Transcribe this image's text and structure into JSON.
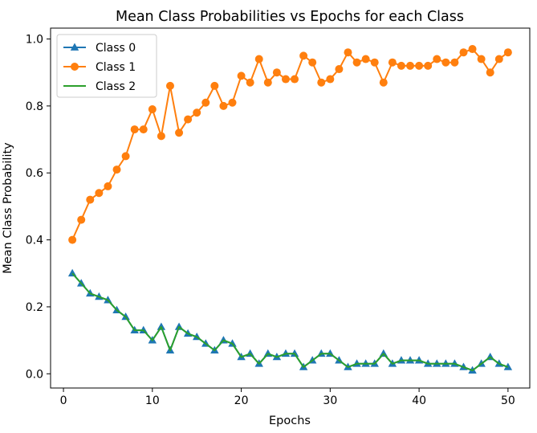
{
  "chart_data": {
    "type": "line",
    "title": "Mean Class Probabilities vs Epochs for each Class",
    "xlabel": "Epochs",
    "ylabel": "Mean Class Probability",
    "xlim": [
      -1.45,
      52.45
    ],
    "ylim": [
      -0.0425,
      1.0325
    ],
    "xticks": [
      0,
      10,
      20,
      30,
      40,
      50
    ],
    "xtick_labels": [
      "0",
      "10",
      "20",
      "30",
      "40",
      "50"
    ],
    "yticks": [
      0.0,
      0.2,
      0.4,
      0.6,
      0.8,
      1.0
    ],
    "ytick_labels": [
      "0.0",
      "0.2",
      "0.4",
      "0.6",
      "0.8",
      "1.0"
    ],
    "grid": false,
    "legend_position": "upper-left",
    "x": [
      1,
      2,
      3,
      4,
      5,
      6,
      7,
      8,
      9,
      10,
      11,
      12,
      13,
      14,
      15,
      16,
      17,
      18,
      19,
      20,
      21,
      22,
      23,
      24,
      25,
      26,
      27,
      28,
      29,
      30,
      31,
      32,
      33,
      34,
      35,
      36,
      37,
      38,
      39,
      40,
      41,
      42,
      43,
      44,
      45,
      46,
      47,
      48,
      49,
      50
    ],
    "series": [
      {
        "name": "Class 0",
        "color": "#1f77b4",
        "marker": "triangle",
        "values": [
          0.3,
          0.27,
          0.24,
          0.23,
          0.22,
          0.19,
          0.17,
          0.13,
          0.13,
          0.1,
          0.14,
          0.07,
          0.14,
          0.12,
          0.11,
          0.09,
          0.07,
          0.1,
          0.09,
          0.05,
          0.06,
          0.03,
          0.06,
          0.05,
          0.06,
          0.06,
          0.02,
          0.04,
          0.06,
          0.06,
          0.04,
          0.02,
          0.03,
          0.03,
          0.03,
          0.06,
          0.03,
          0.04,
          0.04,
          0.04,
          0.03,
          0.03,
          0.03,
          0.03,
          0.02,
          0.01,
          0.03,
          0.05,
          0.03,
          0.02
        ]
      },
      {
        "name": "Class 1",
        "color": "#ff7f0e",
        "marker": "circle",
        "values": [
          0.4,
          0.46,
          0.52,
          0.54,
          0.56,
          0.61,
          0.65,
          0.73,
          0.73,
          0.79,
          0.71,
          0.86,
          0.72,
          0.76,
          0.78,
          0.81,
          0.86,
          0.8,
          0.81,
          0.89,
          0.87,
          0.94,
          0.87,
          0.9,
          0.88,
          0.88,
          0.95,
          0.93,
          0.87,
          0.88,
          0.91,
          0.96,
          0.93,
          0.94,
          0.93,
          0.87,
          0.93,
          0.92,
          0.92,
          0.92,
          0.92,
          0.94,
          0.93,
          0.93,
          0.96,
          0.97,
          0.94,
          0.9,
          0.94,
          0.96
        ]
      },
      {
        "name": "Class 2",
        "color": "#2ca02c",
        "marker": "none",
        "values": [
          0.3,
          0.27,
          0.24,
          0.23,
          0.22,
          0.19,
          0.17,
          0.13,
          0.13,
          0.1,
          0.14,
          0.07,
          0.14,
          0.12,
          0.11,
          0.09,
          0.07,
          0.1,
          0.09,
          0.05,
          0.06,
          0.03,
          0.06,
          0.05,
          0.06,
          0.06,
          0.02,
          0.04,
          0.06,
          0.06,
          0.04,
          0.02,
          0.03,
          0.03,
          0.03,
          0.06,
          0.03,
          0.04,
          0.04,
          0.04,
          0.03,
          0.03,
          0.03,
          0.03,
          0.02,
          0.01,
          0.03,
          0.05,
          0.03,
          0.02
        ]
      }
    ]
  }
}
